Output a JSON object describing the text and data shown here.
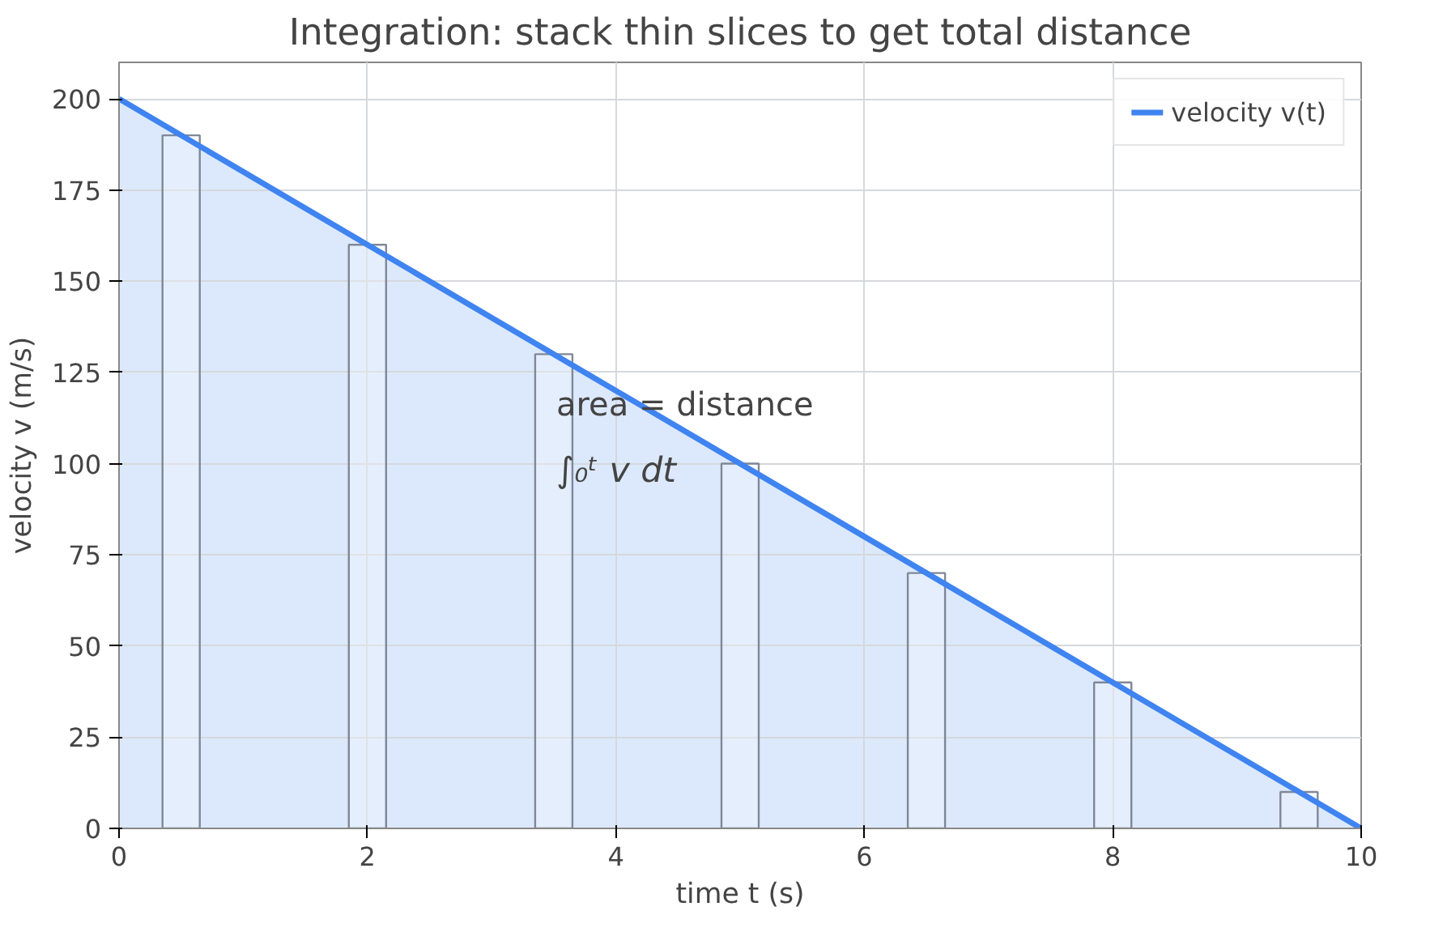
{
  "chart_data": {
    "type": "area",
    "title": "Integration: stack thin slices to get total distance",
    "xlabel": "time t (s)",
    "ylabel": "velocity v (m/s)",
    "xlim": [
      0,
      10
    ],
    "ylim": [
      0,
      210
    ],
    "xticks": [
      0,
      2,
      4,
      6,
      8,
      10
    ],
    "yticks": [
      0,
      25,
      50,
      75,
      100,
      125,
      150,
      175,
      200
    ],
    "grid": true,
    "legend": "top right",
    "annotations": [
      "area = distance",
      "∫₀ᵗ v dt"
    ],
    "series": [
      {
        "type": "bar",
        "color": "#7f8898",
        "x": [
          0.5,
          2,
          3.5,
          5,
          6.5,
          8,
          9.5
        ],
        "values": [
          190,
          160,
          130,
          100,
          70,
          40,
          10
        ]
      },
      {
        "name": "velocity v(t)",
        "color": "#3f84f0",
        "x": [
          0,
          2,
          4,
          6,
          8,
          10
        ],
        "values": [
          200,
          160,
          120,
          80,
          40,
          0
        ]
      }
    ]
  }
}
